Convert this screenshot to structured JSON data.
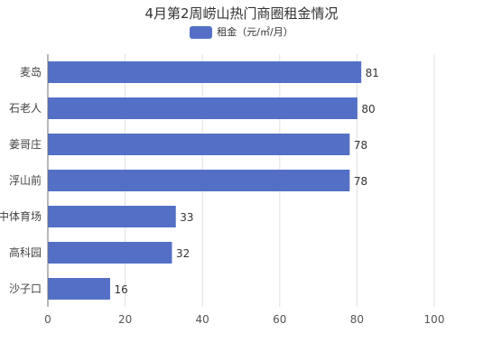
{
  "chart_data": {
    "type": "bar",
    "orientation": "horizontal",
    "title": "4月第2周崂山热门商圈租金情况",
    "categories": [
      "麦岛",
      "石老人",
      "姜哥庄",
      "浮山前",
      "中体育场",
      "高科园",
      "沙子口"
    ],
    "series": [
      {
        "name": "租金（元/㎡/月）",
        "values": [
          81,
          80,
          78,
          78,
          33,
          32,
          16
        ],
        "color": "#5470c6"
      }
    ],
    "xlim": [
      0,
      120
    ],
    "x_ticks": [
      "0",
      "20",
      "40",
      "60",
      "80",
      "100"
    ],
    "grid": true,
    "legend_position": "top-center",
    "data_labels": true
  }
}
